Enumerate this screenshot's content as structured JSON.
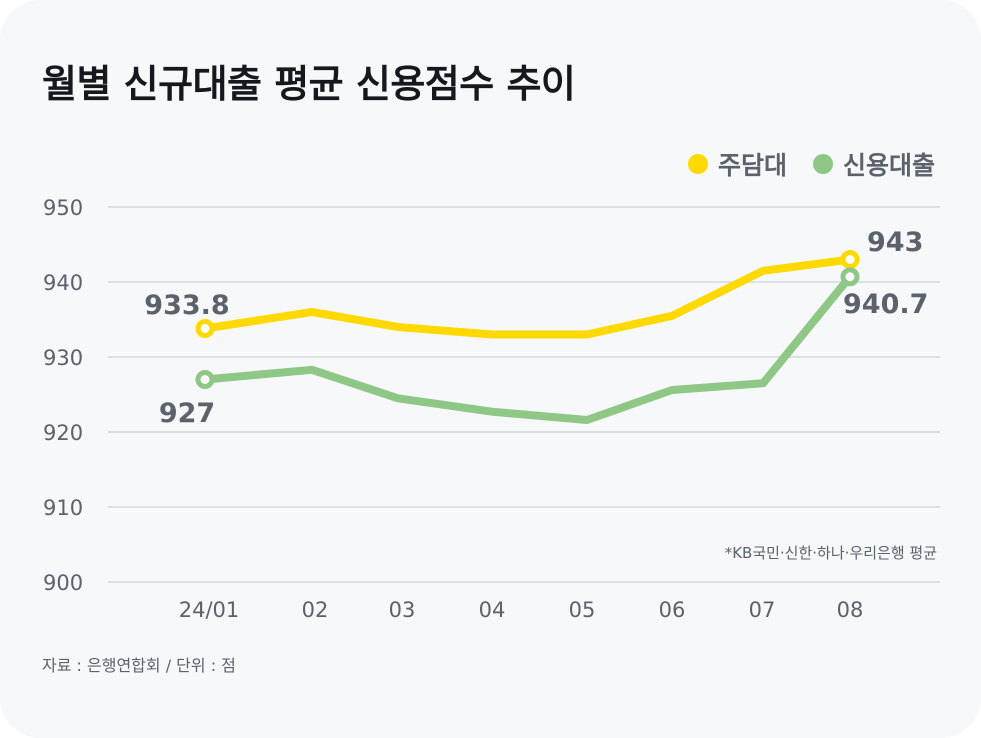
{
  "title": "월별 신규대출 평균 신용점수 추이",
  "legend": [
    {
      "label": "주담대",
      "color": "#ffd900"
    },
    {
      "label": "신용대출",
      "color": "#8fc786"
    }
  ],
  "note": "*KB국민·신한·하나·우리은행 평균",
  "source": "자료 : 은행연합회  /  단위 : 점",
  "chart_data": {
    "type": "line",
    "title": "월별 신규대출 평균 신용점수 추이",
    "xlabel": "",
    "ylabel": "",
    "categories": [
      "24/01",
      "02",
      "03",
      "04",
      "05",
      "06",
      "07",
      "08"
    ],
    "series": [
      {
        "name": "주담대",
        "color": "#ffd900",
        "values": [
          933.8,
          936,
          934,
          933,
          933,
          935.5,
          941.5,
          943
        ]
      },
      {
        "name": "신용대출",
        "color": "#8fc786",
        "values": [
          927,
          928.3,
          924.5,
          922.7,
          921.6,
          925.6,
          926.5,
          940.7
        ]
      }
    ],
    "annotations": [
      {
        "series": "주담대",
        "category": "24/01",
        "text": "933.8"
      },
      {
        "series": "주담대",
        "category": "08",
        "text": "943"
      },
      {
        "series": "신용대출",
        "category": "24/01",
        "text": "927"
      },
      {
        "series": "신용대출",
        "category": "08",
        "text": "940.7"
      }
    ],
    "yticks": [
      "950",
      "940",
      "930",
      "920",
      "910",
      "900"
    ],
    "ylim": [
      900,
      950
    ],
    "grid": true,
    "legend_position": "top-right"
  }
}
